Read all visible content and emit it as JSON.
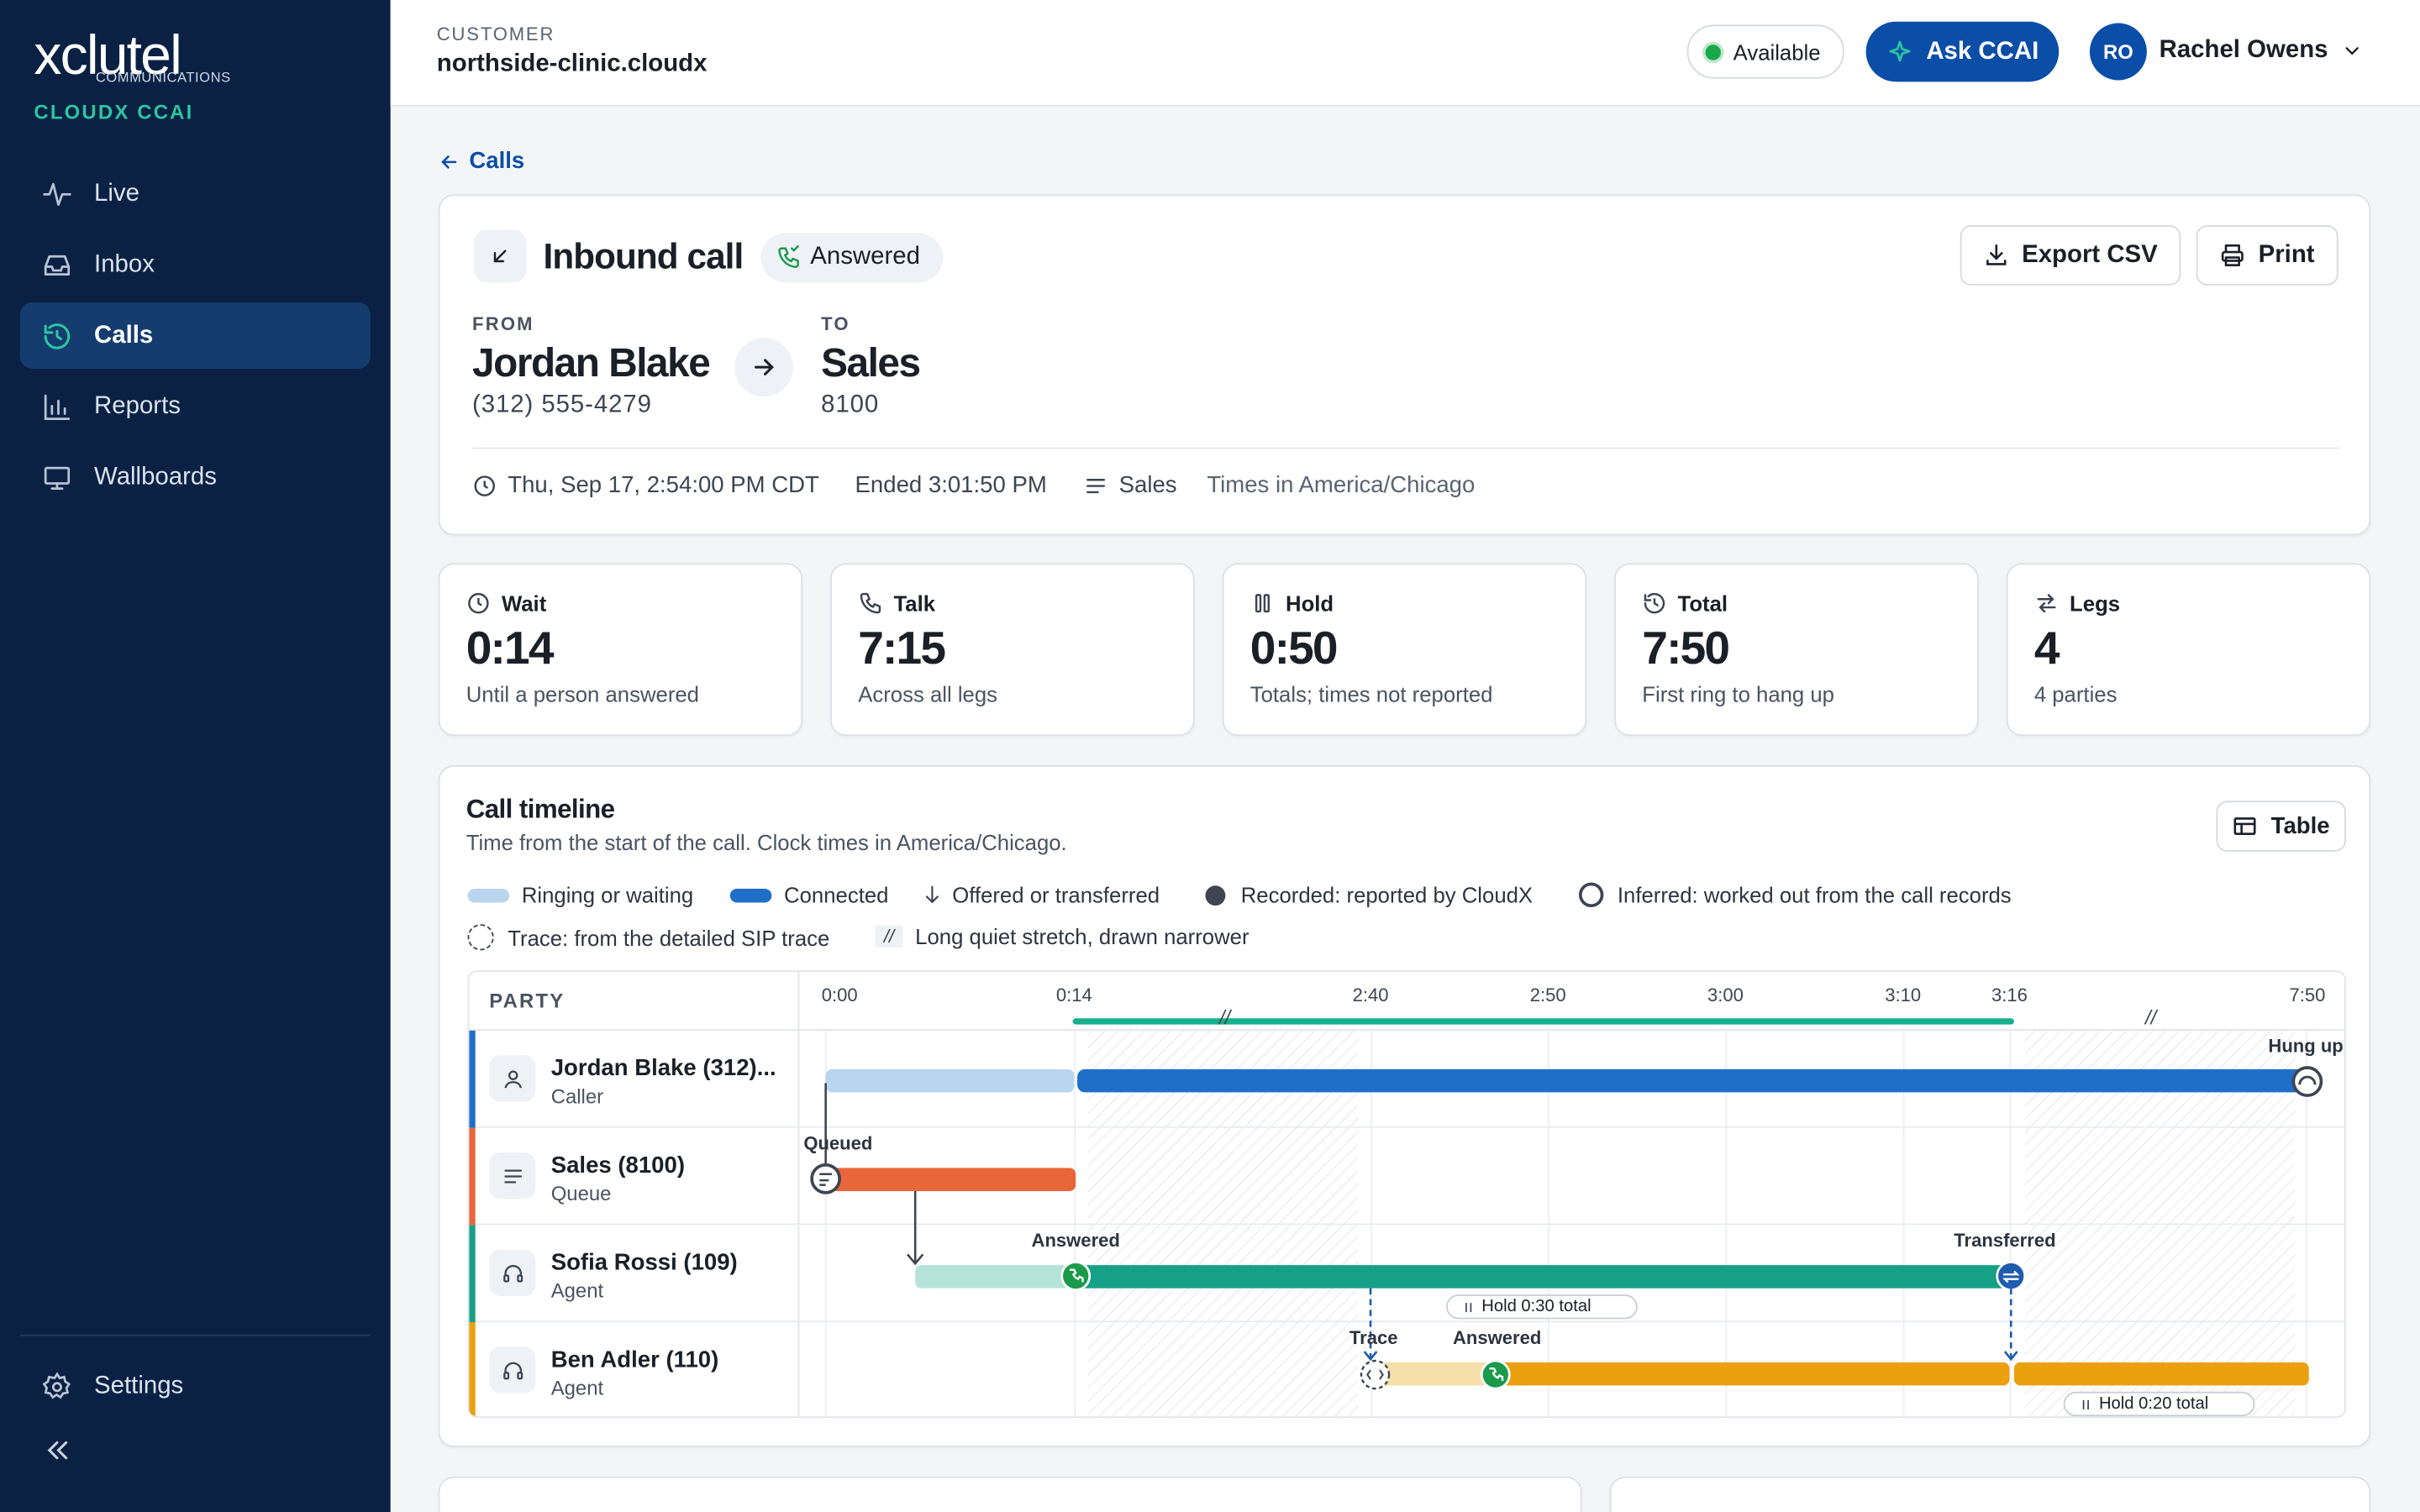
{
  "sidebar": {
    "brand": "xclutel",
    "brand_sub": "COMMUNICATIONS",
    "product": "CLOUDX CCAI",
    "items": [
      {
        "label": "Live",
        "icon": "activity-icon"
      },
      {
        "label": "Inbox",
        "icon": "inbox-icon"
      },
      {
        "label": "Calls",
        "icon": "history-icon",
        "active": true
      },
      {
        "label": "Reports",
        "icon": "bar-chart-icon"
      },
      {
        "label": "Wallboards",
        "icon": "monitor-icon"
      }
    ],
    "settings": "Settings",
    "collapse_icon": "double-chevron-left-icon"
  },
  "header": {
    "customer_label": "CUSTOMER",
    "customer": "northside-clinic.cloudx",
    "status": "Available",
    "ask": "Ask CCAI",
    "user_initials": "RO",
    "user_name": "Rachel Owens"
  },
  "back": "Calls",
  "call": {
    "title": "Inbound call",
    "status": "Answered",
    "export": "Export CSV",
    "print": "Print",
    "from_label": "FROM",
    "from_name": "Jordan Blake",
    "from_number": "(312) 555-4279",
    "to_label": "TO",
    "to_name": "Sales",
    "to_number": "8100",
    "started": "Thu, Sep 17, 2:54:00 PM CDT",
    "ended": "Ended 3:01:50 PM",
    "queue": "Sales",
    "timezone": "Times in America/Chicago"
  },
  "stats": [
    {
      "label": "Wait",
      "value": "0:14",
      "sub": "Until a person answered",
      "icon": "clock-icon"
    },
    {
      "label": "Talk",
      "value": "7:15",
      "sub": "Across all legs",
      "icon": "phone-icon"
    },
    {
      "label": "Hold",
      "value": "0:50",
      "sub": "Totals; times not reported",
      "icon": "pause-icon"
    },
    {
      "label": "Total",
      "value": "7:50",
      "sub": "First ring to hang up",
      "icon": "history-icon"
    },
    {
      "label": "Legs",
      "value": "4",
      "sub": "4 parties",
      "icon": "swap-icon"
    }
  ],
  "timeline": {
    "title": "Call timeline",
    "subtitle": "Time from the start of the call. Clock times in America/Chicago.",
    "table_btn": "Table",
    "legend": {
      "ringing": "Ringing or waiting",
      "connected": "Connected",
      "offered": "Offered or transferred",
      "recorded": "Recorded: reported by CloudX",
      "inferred": "Inferred: worked out from the call records",
      "trace": "Trace: from the detailed SIP trace",
      "quiet": "Long quiet stretch, drawn narrower"
    },
    "party_header": "PARTY",
    "ticks": [
      "0:00",
      "0:14",
      "2:40",
      "2:50",
      "3:00",
      "3:10",
      "3:16",
      "7:50"
    ],
    "parties": [
      {
        "name": "Jordan Blake (312)...",
        "role": "Caller",
        "color": "#1f6fc9"
      },
      {
        "name": "Sales (8100)",
        "role": "Queue",
        "color": "#e8663a"
      },
      {
        "name": "Sofia Rossi (109)",
        "role": "Agent",
        "color": "#16a085"
      },
      {
        "name": "Ben Adler (110)",
        "role": "Agent",
        "color": "#eaa00f"
      }
    ],
    "annotations": {
      "hung_up": "Hung up",
      "queued": "Queued",
      "answered1": "Answered",
      "transferred": "Transferred",
      "trace": "Trace",
      "answered2": "Answered",
      "hold1": "Hold 0:30 total",
      "hold2": "Hold 0:20 total"
    },
    "quiet_mark": "//"
  },
  "colors": {
    "sidebar_bg": "#0a2144",
    "accent": "#0b4ea8",
    "teal": "#2ec4a0",
    "caller": "#1f6fc9",
    "queue": "#e8663a",
    "agent1": "#16a085",
    "agent2": "#eaa00f"
  }
}
